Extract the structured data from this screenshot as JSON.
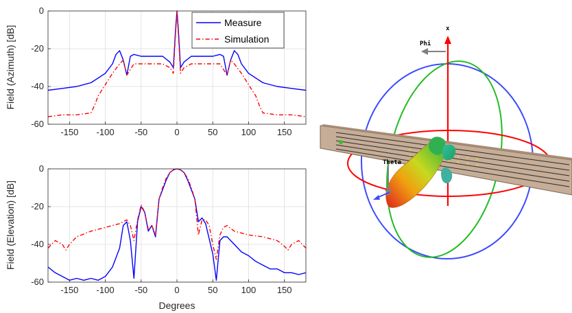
{
  "chart_data": [
    {
      "type": "line",
      "title": "",
      "xlabel": "",
      "ylabel": "Field (Azimuth) [dB]",
      "xlim": [
        -180,
        180
      ],
      "ylim": [
        -60,
        0
      ],
      "xticks": [
        "-150",
        "-100",
        "-50",
        "0",
        "50",
        "100",
        "150"
      ],
      "yticks": [
        "0",
        "-20",
        "-40",
        "-60"
      ],
      "grid": true,
      "legend": "top-right",
      "colors": {
        "measure": "#0000ff",
        "simulation": "#ff0000"
      },
      "series": [
        {
          "name": "Measure",
          "style": "solid",
          "x": [
            -180,
            -160,
            -140,
            -120,
            -100,
            -90,
            -85,
            -80,
            -75,
            -70,
            -65,
            -60,
            -50,
            -40,
            -30,
            -20,
            -10,
            -5,
            -2,
            0,
            2,
            5,
            10,
            20,
            30,
            40,
            50,
            60,
            65,
            70,
            75,
            80,
            85,
            90,
            100,
            120,
            140,
            160,
            180
          ],
          "y": [
            -42,
            -41,
            -40,
            -38,
            -33,
            -28,
            -23,
            -21,
            -26,
            -34,
            -24,
            -23,
            -24,
            -24,
            -24,
            -24,
            -27,
            -30,
            -10,
            0,
            -10,
            -30,
            -27,
            -24,
            -24,
            -24,
            -24,
            -23,
            -24,
            -34,
            -26,
            -21,
            -23,
            -28,
            -33,
            -38,
            -40,
            -41,
            -42
          ]
        },
        {
          "name": "Simulation",
          "style": "dash-dot",
          "x": [
            -180,
            -160,
            -140,
            -120,
            -115,
            -110,
            -100,
            -90,
            -80,
            -75,
            -70,
            -60,
            -50,
            -40,
            -30,
            -20,
            -10,
            -5,
            -2,
            0,
            2,
            5,
            10,
            20,
            30,
            40,
            50,
            60,
            70,
            75,
            80,
            90,
            100,
            110,
            115,
            120,
            140,
            160,
            180
          ],
          "y": [
            -56,
            -55,
            -55,
            -54,
            -50,
            -45,
            -39,
            -33,
            -28,
            -26,
            -34,
            -28,
            -28,
            -28,
            -28,
            -28,
            -30,
            -33,
            -12,
            0,
            -12,
            -33,
            -30,
            -28,
            -28,
            -28,
            -28,
            -28,
            -34,
            -26,
            -28,
            -33,
            -39,
            -45,
            -50,
            -54,
            -55,
            -55,
            -56
          ]
        }
      ]
    },
    {
      "type": "line",
      "title": "",
      "xlabel": "Degrees",
      "ylabel": "Field (Elevation) [dB]",
      "xlim": [
        -180,
        180
      ],
      "ylim": [
        -60,
        0
      ],
      "xticks": [
        "-150",
        "-100",
        "-50",
        "0",
        "50",
        "100",
        "150"
      ],
      "yticks": [
        "0",
        "-20",
        "-40",
        "-60"
      ],
      "grid": true,
      "colors": {
        "measure": "#0000ff",
        "simulation": "#ff0000"
      },
      "series": [
        {
          "name": "Measure",
          "style": "solid",
          "x": [
            -180,
            -170,
            -160,
            -150,
            -140,
            -130,
            -120,
            -110,
            -100,
            -90,
            -80,
            -75,
            -70,
            -65,
            -60,
            -55,
            -50,
            -45,
            -40,
            -35,
            -30,
            -25,
            -20,
            -15,
            -10,
            -5,
            0,
            5,
            10,
            15,
            20,
            25,
            30,
            35,
            40,
            45,
            50,
            55,
            60,
            65,
            70,
            80,
            90,
            100,
            110,
            120,
            130,
            140,
            150,
            160,
            170,
            180
          ],
          "y": [
            -52,
            -55,
            -57,
            -59,
            -58,
            -59,
            -58,
            -59,
            -57,
            -52,
            -42,
            -30,
            -28,
            -38,
            -58,
            -28,
            -20,
            -23,
            -33,
            -30,
            -36,
            -16,
            -11,
            -6,
            -2,
            -0.5,
            0,
            -0.5,
            -2,
            -6,
            -11,
            -16,
            -28,
            -26,
            -29,
            -37,
            -45,
            -59,
            -38,
            -36,
            -36,
            -40,
            -44,
            -46,
            -49,
            -51,
            -53,
            -53,
            -55,
            -55,
            -56,
            -55
          ]
        },
        {
          "name": "Simulation",
          "style": "dash-dot",
          "x": [
            -180,
            -170,
            -160,
            -155,
            -150,
            -140,
            -120,
            -100,
            -80,
            -70,
            -65,
            -60,
            -55,
            -50,
            -45,
            -40,
            -35,
            -30,
            -25,
            -20,
            -15,
            -10,
            -5,
            0,
            5,
            10,
            15,
            20,
            25,
            30,
            35,
            40,
            45,
            50,
            55,
            60,
            65,
            70,
            80,
            100,
            120,
            140,
            150,
            155,
            160,
            170,
            180
          ],
          "y": [
            -42,
            -38,
            -40,
            -43,
            -40,
            -36,
            -33,
            -31,
            -29,
            -27,
            -30,
            -38,
            -27,
            -19,
            -23,
            -32,
            -30,
            -35,
            -16,
            -10,
            -5,
            -2,
            -0.5,
            0,
            -0.5,
            -2,
            -5,
            -10,
            -16,
            -35,
            -27,
            -27,
            -30,
            -40,
            -48,
            -35,
            -31,
            -30,
            -33,
            -35,
            -36,
            -38,
            -41,
            -43,
            -40,
            -38,
            -42
          ]
        }
      ]
    }
  ],
  "legend": {
    "measure_label": "Measure",
    "simulation_label": "Simulation"
  },
  "scene3d": {
    "axis_x_label": "x",
    "phi_label": "Phi",
    "theta_label": "Theta",
    "colors": {
      "plate": "#c6ad97",
      "x_axis": "#ff0000",
      "ring_azimuth": "#ff0000",
      "ring_blue": "#3b4bff",
      "ring_green": "#22bb22",
      "arrow": "#808080"
    }
  }
}
